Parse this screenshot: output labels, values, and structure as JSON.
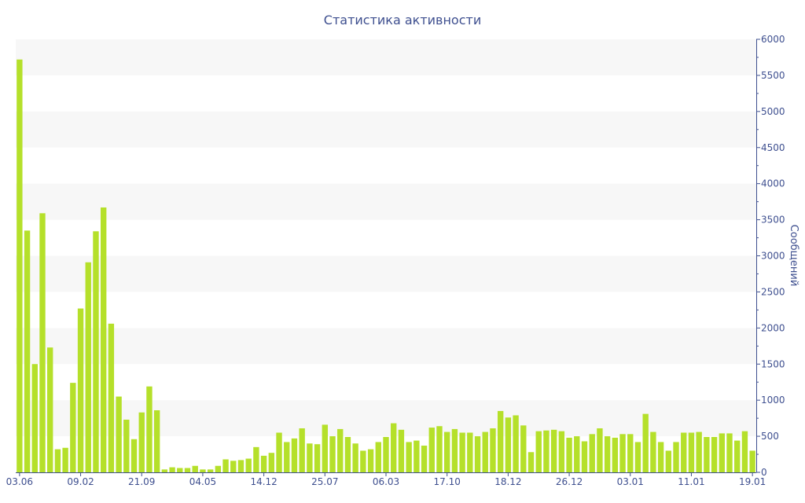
{
  "chart_data": {
    "type": "bar",
    "title": "Статистика активности",
    "xlabel": "",
    "ylabel": "Сообщений",
    "ylim": [
      0,
      6000
    ],
    "y_axis_side": "right",
    "y_ticks": [
      0,
      500,
      1000,
      1500,
      2000,
      2500,
      3000,
      3500,
      4000,
      4500,
      5000,
      5500,
      6000
    ],
    "x_tick_labels": [
      "03.06",
      "09.02",
      "21.09",
      "04.05",
      "14.12",
      "25.07",
      "06.03",
      "17.10",
      "18.12",
      "26.12",
      "03.01",
      "11.01",
      "19.01"
    ],
    "bar_color": "#b5e02a",
    "band_color": "#f7f7f7",
    "grid": "alternating horizontal bands",
    "series": [
      {
        "values": [
          5720,
          3350,
          1500,
          3590,
          1730,
          320,
          340,
          1240,
          2270,
          2910,
          3340,
          3670,
          2060,
          1050,
          730,
          460,
          830,
          1190,
          860,
          40,
          70,
          60,
          60,
          90,
          40,
          40,
          90,
          180,
          160,
          170,
          190,
          350,
          230,
          270,
          550,
          420,
          470,
          610,
          400,
          390,
          660,
          500,
          600,
          490,
          400,
          300,
          320,
          420,
          490,
          680,
          590,
          420,
          440,
          370,
          620,
          640,
          560,
          600,
          550,
          550,
          500,
          560,
          610,
          850,
          760,
          790,
          650,
          280,
          570,
          580,
          590,
          570,
          480,
          500,
          430,
          530,
          610,
          500,
          480,
          530,
          530,
          420,
          810,
          560,
          420,
          300,
          420,
          550,
          550,
          560,
          490,
          490,
          540,
          540,
          440,
          570,
          300
        ]
      }
    ]
  }
}
